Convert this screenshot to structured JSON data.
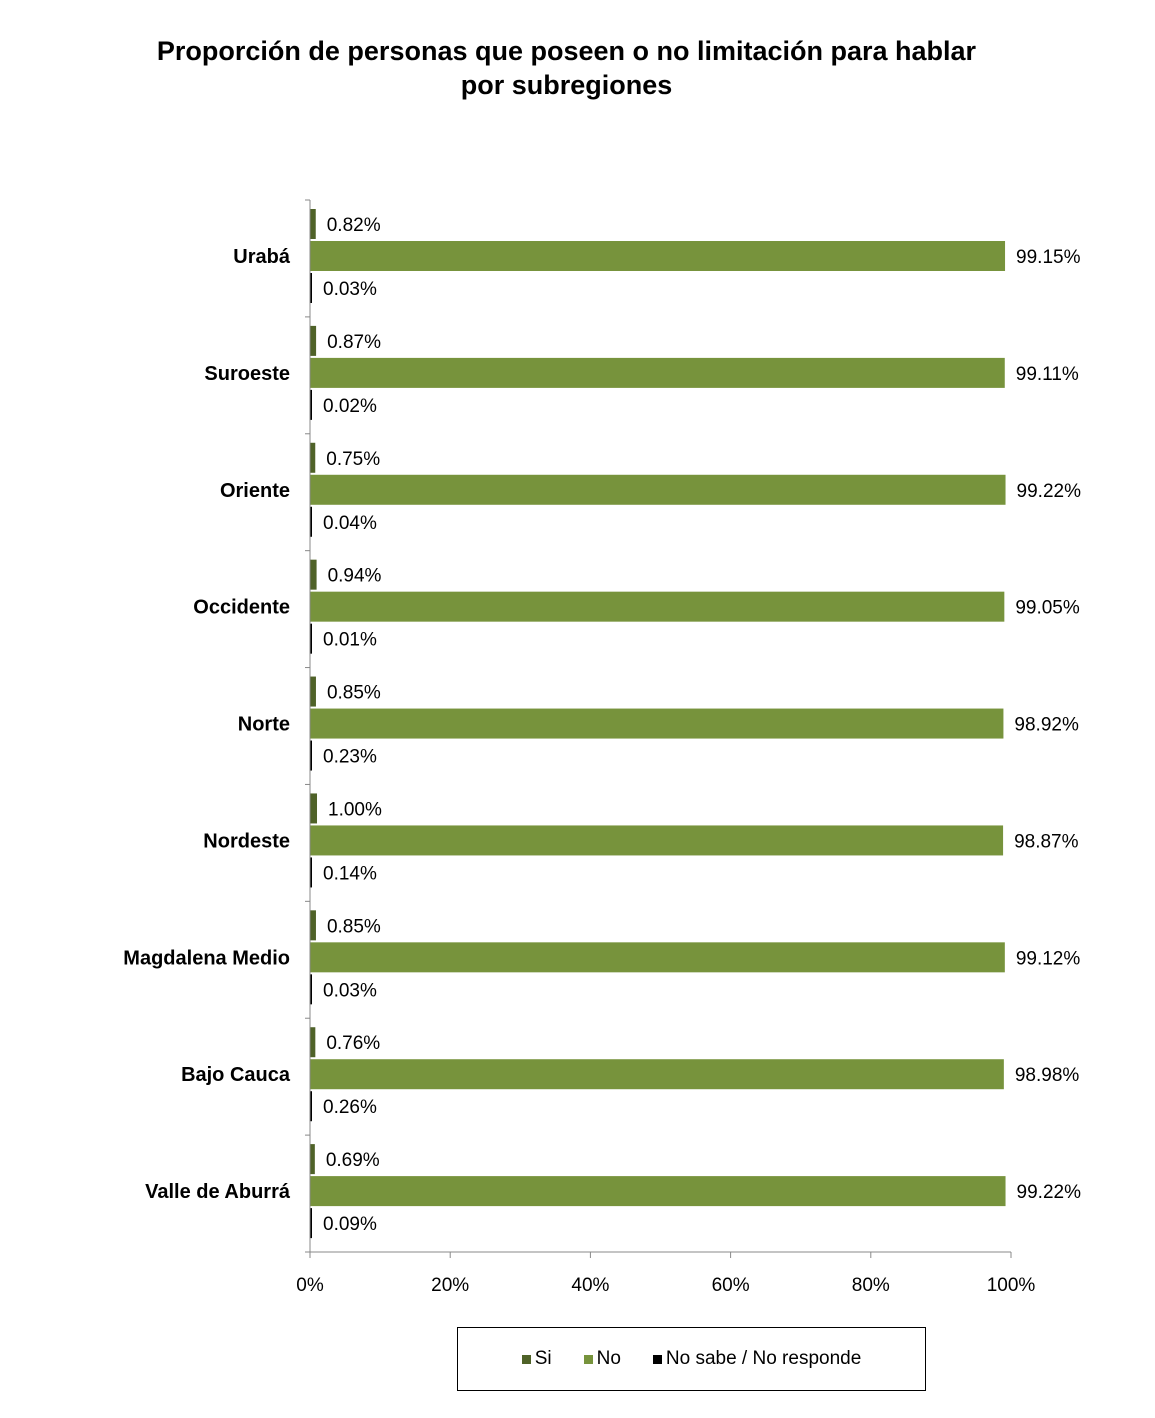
{
  "chart_data": {
    "type": "bar",
    "orientation": "horizontal",
    "title": "Proporción de personas que poseen o no limitación para hablar por subregiones",
    "title_lines": [
      "Proporción de personas que poseen o no limitación para hablar",
      "por subregiones"
    ],
    "categories": [
      "Urabá",
      "Suroeste",
      "Oriente",
      "Occidente",
      "Norte",
      "Nordeste",
      "Magdalena Medio",
      "Bajo Cauca",
      "Valle de Aburrá"
    ],
    "series": [
      {
        "name": "Si",
        "color": "#4f6228",
        "values": [
          0.82,
          0.87,
          0.75,
          0.94,
          0.85,
          1.0,
          0.85,
          0.76,
          0.69
        ],
        "labels": [
          "0.82%",
          "0.87%",
          "0.75%",
          "0.94%",
          "0.85%",
          "1.00%",
          "0.85%",
          "0.76%",
          "0.69%"
        ]
      },
      {
        "name": "No",
        "color": "#77933c",
        "values": [
          99.15,
          99.11,
          99.22,
          99.05,
          98.92,
          98.87,
          99.12,
          98.98,
          99.22
        ],
        "labels": [
          "99.15%",
          "99.11%",
          "99.22%",
          "99.05%",
          "98.92%",
          "98.87%",
          "99.12%",
          "98.98%",
          "99.22%"
        ]
      },
      {
        "name": "No sabe / No responde",
        "color": "#000000",
        "values": [
          0.03,
          0.02,
          0.04,
          0.01,
          0.23,
          0.14,
          0.03,
          0.26,
          0.09
        ],
        "labels": [
          "0.03%",
          "0.02%",
          "0.04%",
          "0.01%",
          "0.23%",
          "0.14%",
          "0.03%",
          "0.26%",
          "0.09%"
        ]
      }
    ],
    "xlim": [
      0,
      100
    ],
    "xticks": [
      0,
      20,
      40,
      60,
      80,
      100
    ],
    "xtick_labels": [
      "0%",
      "20%",
      "40%",
      "60%",
      "80%",
      "100%"
    ],
    "xlabel": "",
    "ylabel": "",
    "grid": false,
    "legend_position": "bottom"
  }
}
